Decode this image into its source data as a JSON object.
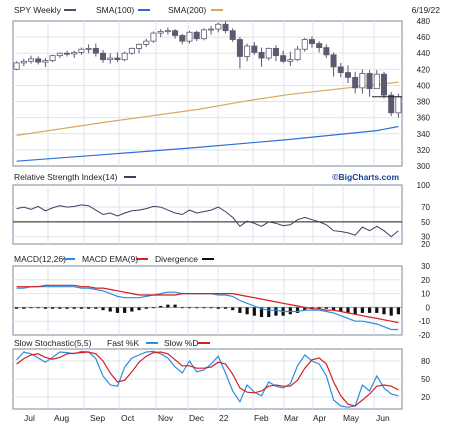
{
  "header": {
    "symbol": "SPY Weekly",
    "sma100": "SMA(100)",
    "sma200": "SMA(200)",
    "date": "6/19/22"
  },
  "colors": {
    "price_bar": "#5b5b70",
    "sma100": "#2d6fd8",
    "sma200": "#d8a85a",
    "rsi": "#3d3d64",
    "macd": "#2e8ce0",
    "macd_ema": "#d42020",
    "divergence": "#101010",
    "fast_k": "#2e8ce0",
    "slow_d": "#d42020",
    "grid": "#dde4ee",
    "text": "#222222"
  },
  "chart_data": [
    {
      "type": "candlestick",
      "title": "SPY Weekly",
      "legend": [
        "SPY Weekly",
        "SMA(100)",
        "SMA(200)"
      ],
      "legend_placement": "top-left",
      "date": "6/19/22",
      "ylim": [
        300,
        480
      ],
      "yticks": [
        300,
        320,
        340,
        360,
        380,
        400,
        420,
        440,
        460,
        480
      ],
      "x_labels": [
        "Jul",
        "Aug",
        "Sep",
        "Oct",
        "Nov",
        "Dec",
        "22",
        "Feb",
        "Mar",
        "Apr",
        "May",
        "Jun"
      ],
      "weekly_ohlc": [
        [
          420,
          430,
          419,
          428
        ],
        [
          428,
          433,
          424,
          430
        ],
        [
          430,
          437,
          427,
          433
        ],
        [
          433,
          436,
          426,
          429
        ],
        [
          429,
          434,
          423,
          431
        ],
        [
          431,
          438,
          429,
          437
        ],
        [
          437,
          441,
          434,
          440
        ],
        [
          440,
          443,
          436,
          439
        ],
        [
          439,
          443,
          434,
          441
        ],
        [
          441,
          447,
          438,
          445
        ],
        [
          445,
          451,
          440,
          446
        ],
        [
          446,
          452,
          436,
          440
        ],
        [
          440,
          444,
          428,
          432
        ],
        [
          432,
          440,
          427,
          434
        ],
        [
          434,
          441,
          429,
          432
        ],
        [
          432,
          442,
          430,
          440
        ],
        [
          440,
          447,
          438,
          446
        ],
        [
          446,
          452,
          440,
          451
        ],
        [
          451,
          458,
          448,
          455
        ],
        [
          455,
          467,
          453,
          465
        ],
        [
          465,
          470,
          460,
          467
        ],
        [
          467,
          472,
          463,
          468
        ],
        [
          468,
          470,
          458,
          462
        ],
        [
          462,
          464,
          451,
          455
        ],
        [
          455,
          468,
          452,
          466
        ],
        [
          466,
          468,
          455,
          458
        ],
        [
          458,
          471,
          456,
          469
        ],
        [
          469,
          474,
          463,
          470
        ],
        [
          470,
          478,
          466,
          476
        ],
        [
          476,
          480,
          465,
          468
        ],
        [
          468,
          471,
          454,
          457
        ],
        [
          457,
          460,
          421,
          436
        ],
        [
          436,
          452,
          430,
          449
        ],
        [
          449,
          454,
          438,
          441
        ],
        [
          441,
          447,
          423,
          434
        ],
        [
          434,
          447,
          431,
          446
        ],
        [
          446,
          450,
          430,
          437
        ],
        [
          437,
          443,
          428,
          430
        ],
        [
          430,
          442,
          424,
          432
        ],
        [
          432,
          449,
          430,
          445
        ],
        [
          445,
          459,
          442,
          457
        ],
        [
          457,
          461,
          447,
          452
        ],
        [
          452,
          455,
          441,
          447
        ],
        [
          447,
          451,
          434,
          438
        ],
        [
          438,
          441,
          411,
          423
        ],
        [
          423,
          428,
          410,
          416
        ],
        [
          416,
          425,
          403,
          410
        ],
        [
          410,
          417,
          390,
          397
        ],
        [
          397,
          420,
          390,
          415
        ],
        [
          415,
          419,
          386,
          396
        ],
        [
          396,
          419,
          396,
          414
        ],
        [
          414,
          417,
          384,
          388
        ],
        [
          388,
          392,
          362,
          366
        ],
        [
          366,
          390,
          360,
          386
        ]
      ],
      "sma100": [
        {
          "x": 0,
          "y": 306
        },
        {
          "x": 12,
          "y": 314
        },
        {
          "x": 25,
          "y": 323
        },
        {
          "x": 38,
          "y": 333
        },
        {
          "x": 50,
          "y": 344
        },
        {
          "x": 53,
          "y": 349
        }
      ],
      "sma200": [
        {
          "x": 0,
          "y": 338
        },
        {
          "x": 12,
          "y": 354
        },
        {
          "x": 25,
          "y": 370
        },
        {
          "x": 32,
          "y": 381
        },
        {
          "x": 38,
          "y": 389
        },
        {
          "x": 45,
          "y": 396
        },
        {
          "x": 53,
          "y": 404
        }
      ]
    },
    {
      "type": "line",
      "title": "Relative Strength Index(14)",
      "ylim": [
        20,
        100
      ],
      "yticks": [
        20,
        30,
        50,
        70,
        100
      ],
      "reference_line": 50,
      "series": [
        {
          "name": "Relative Strength Index(14)",
          "values": [
            68,
            70,
            67,
            71,
            65,
            69,
            72,
            70,
            71,
            73,
            72,
            66,
            60,
            62,
            58,
            62,
            65,
            66,
            68,
            71,
            70,
            66,
            62,
            60,
            66,
            62,
            64,
            66,
            70,
            64,
            56,
            44,
            51,
            48,
            44,
            50,
            48,
            45,
            46,
            53,
            56,
            53,
            50,
            46,
            38,
            37,
            35,
            32,
            43,
            38,
            44,
            38,
            30,
            38
          ]
        }
      ],
      "source_label": "©BigCharts.com"
    },
    {
      "type": "line",
      "title": "MACD(12,26)",
      "legend": [
        "MACD(12,26)",
        "MACD EMA(9)",
        "Divergence"
      ],
      "ylim": [
        -20,
        30
      ],
      "yticks": [
        -20,
        -10,
        0,
        10,
        20,
        30
      ],
      "series": [
        {
          "name": "MACD(12,26)",
          "values": [
            14,
            14,
            15,
            15,
            15,
            15,
            15,
            15,
            15,
            14,
            14,
            13,
            12,
            10,
            8,
            7,
            7,
            7,
            8,
            9,
            10,
            11,
            11,
            10,
            10,
            10,
            10,
            10,
            9,
            9,
            8,
            5,
            3,
            1,
            -1,
            -2,
            -2,
            -3,
            -3,
            -3,
            -2,
            -2,
            -2,
            -3,
            -4,
            -6,
            -8,
            -10,
            -10,
            -11,
            -12,
            -14,
            -16,
            -16
          ]
        },
        {
          "name": "MACD EMA(9)",
          "values": [
            15,
            15,
            15,
            15,
            16,
            16,
            16,
            16,
            16,
            15,
            15,
            14,
            14,
            13,
            12,
            11,
            10,
            9,
            9,
            9,
            9,
            9,
            9,
            10,
            10,
            10,
            10,
            10,
            10,
            10,
            10,
            9,
            8,
            7,
            6,
            5,
            4,
            3,
            2,
            1,
            0,
            -1,
            -1,
            -2,
            -2,
            -3,
            -4,
            -5,
            -6,
            -7,
            -8,
            -9,
            -10,
            -11
          ]
        },
        {
          "name": "Divergence",
          "values": [
            -1,
            -1,
            0,
            0,
            -1,
            -1,
            -1,
            -1,
            -1,
            -1,
            -1,
            -1,
            -2,
            -3,
            -4,
            -4,
            -3,
            -2,
            -1,
            0,
            1,
            2,
            2,
            0,
            0,
            0,
            0,
            0,
            -1,
            -1,
            -2,
            -4,
            -5,
            -6,
            -7,
            -7,
            -6,
            -6,
            -5,
            -4,
            -2,
            -1,
            -1,
            -1,
            -2,
            -3,
            -4,
            -5,
            -4,
            -4,
            -4,
            -5,
            -6,
            -5
          ]
        }
      ]
    },
    {
      "type": "line",
      "title": "Slow Stochastic(5,5)",
      "legend": [
        "Slow Stochastic(5,5)",
        "Fast %K",
        "Slow %D"
      ],
      "ylim": [
        0,
        100
      ],
      "yticks": [
        20,
        50,
        80
      ],
      "series": [
        {
          "name": "Fast %K",
          "values": [
            82,
            95,
            92,
            85,
            78,
            86,
            95,
            94,
            92,
            96,
            95,
            84,
            55,
            40,
            38,
            70,
            85,
            90,
            95,
            96,
            92,
            85,
            70,
            60,
            80,
            62,
            65,
            75,
            88,
            60,
            30,
            12,
            40,
            28,
            22,
            45,
            38,
            35,
            42,
            72,
            90,
            80,
            75,
            55,
            15,
            5,
            3,
            5,
            40,
            30,
            55,
            35,
            25,
            22
          ]
        },
        {
          "name": "Slow %D",
          "values": [
            75,
            84,
            90,
            92,
            86,
            83,
            86,
            92,
            93,
            94,
            95,
            92,
            80,
            60,
            45,
            48,
            62,
            78,
            88,
            94,
            95,
            92,
            82,
            72,
            72,
            68,
            68,
            70,
            78,
            75,
            58,
            35,
            28,
            27,
            30,
            38,
            40,
            38,
            38,
            48,
            68,
            82,
            85,
            75,
            45,
            22,
            8,
            5,
            15,
            25,
            38,
            40,
            38,
            32
          ]
        }
      ]
    }
  ]
}
